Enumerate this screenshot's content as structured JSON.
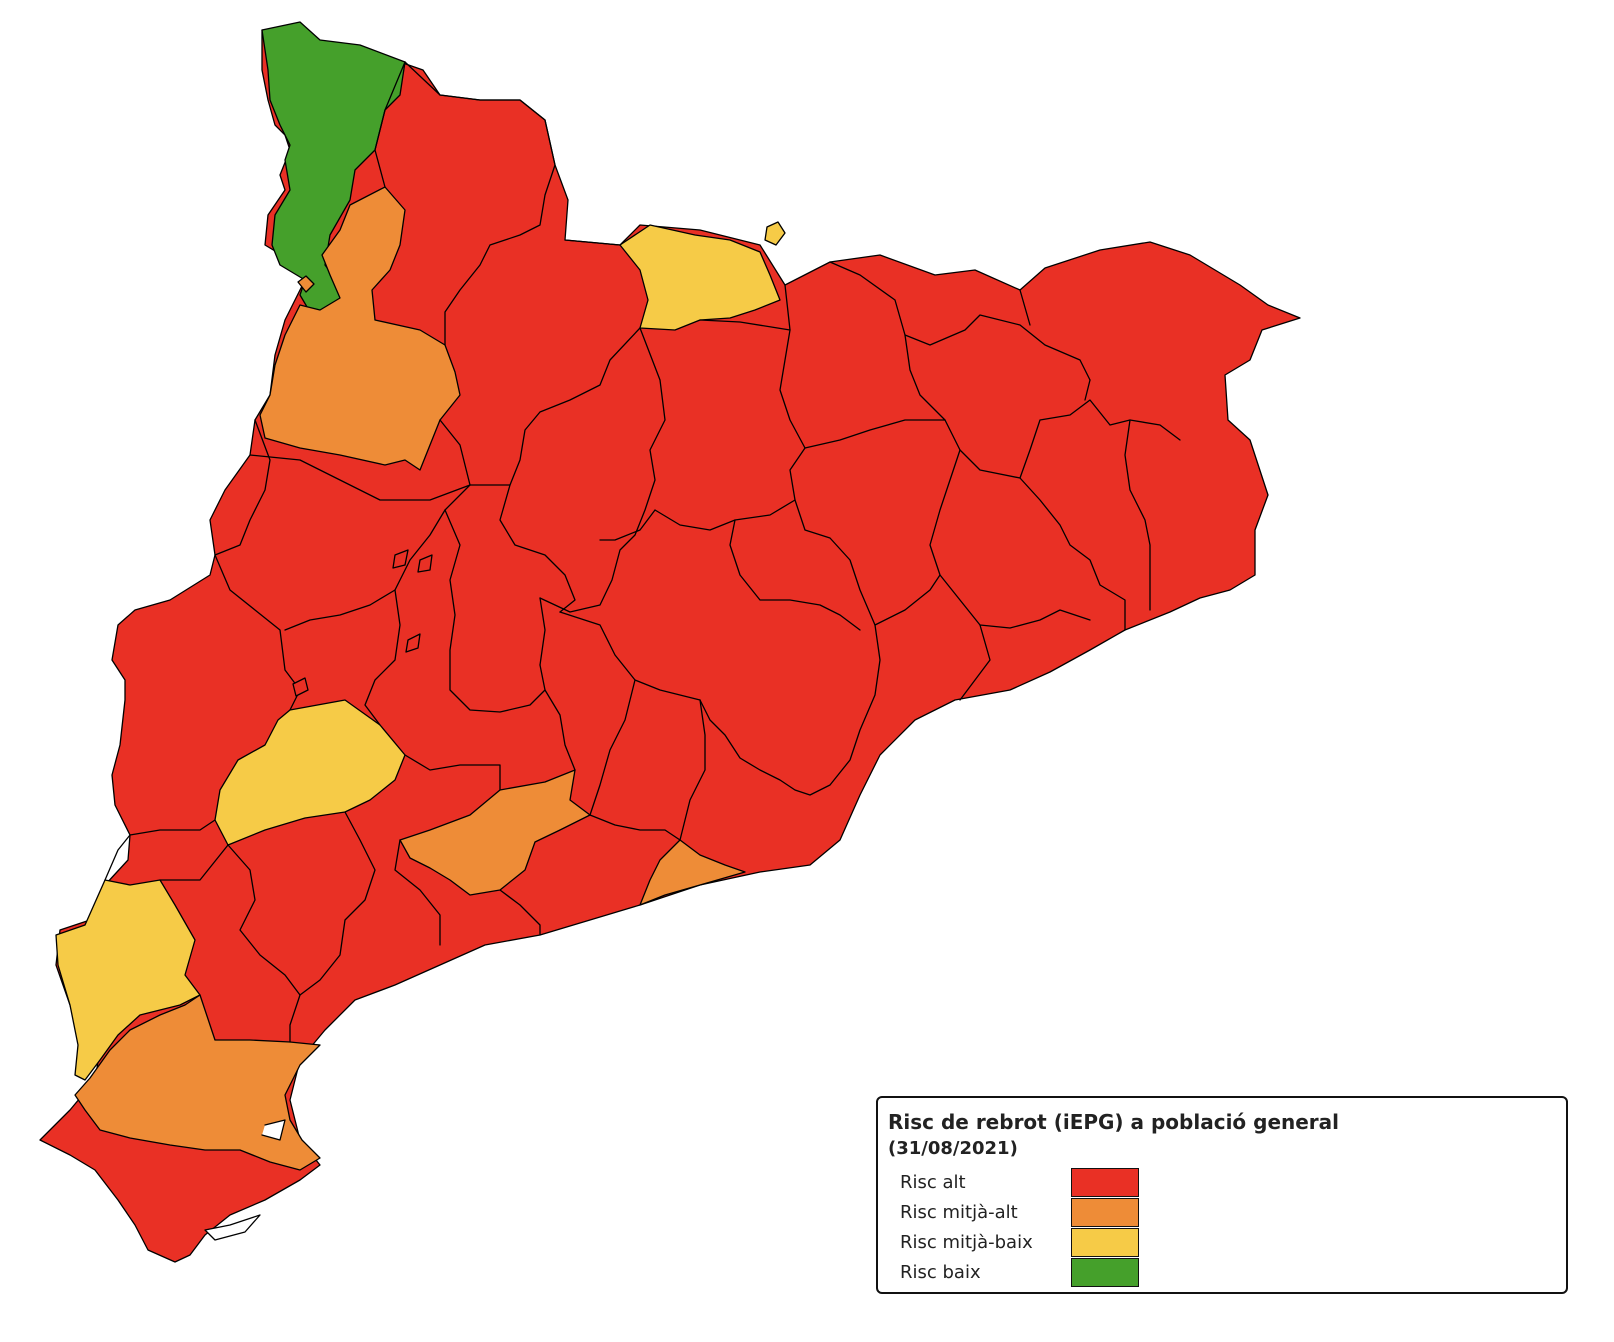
{
  "legend": {
    "title": "Risc de rebrot (iEPG) a població general",
    "date": "(31/08/2021)",
    "items": [
      {
        "label": "Risc alt",
        "color": "#e93025"
      },
      {
        "label": "Risc mitjà-alt",
        "color": "#ee8c37"
      },
      {
        "label": "Risc mitjà-baix",
        "color": "#f6cb47"
      },
      {
        "label": "Risc baix",
        "color": "#45a02b"
      }
    ]
  },
  "regions": [
    {
      "risk": "Risc baix"
    },
    {
      "risk": "Risc mitjà-alt"
    },
    {
      "risk": "Risc mitjà-baix"
    },
    {
      "risk": "Risc mitjà-baix"
    },
    {
      "risk": "Risc mitjà-alt"
    },
    {
      "risk": "Risc mitjà-alt"
    },
    {
      "risk": "Risc mitjà-baix"
    },
    {
      "risk": "Risc mitjà-alt"
    }
  ]
}
